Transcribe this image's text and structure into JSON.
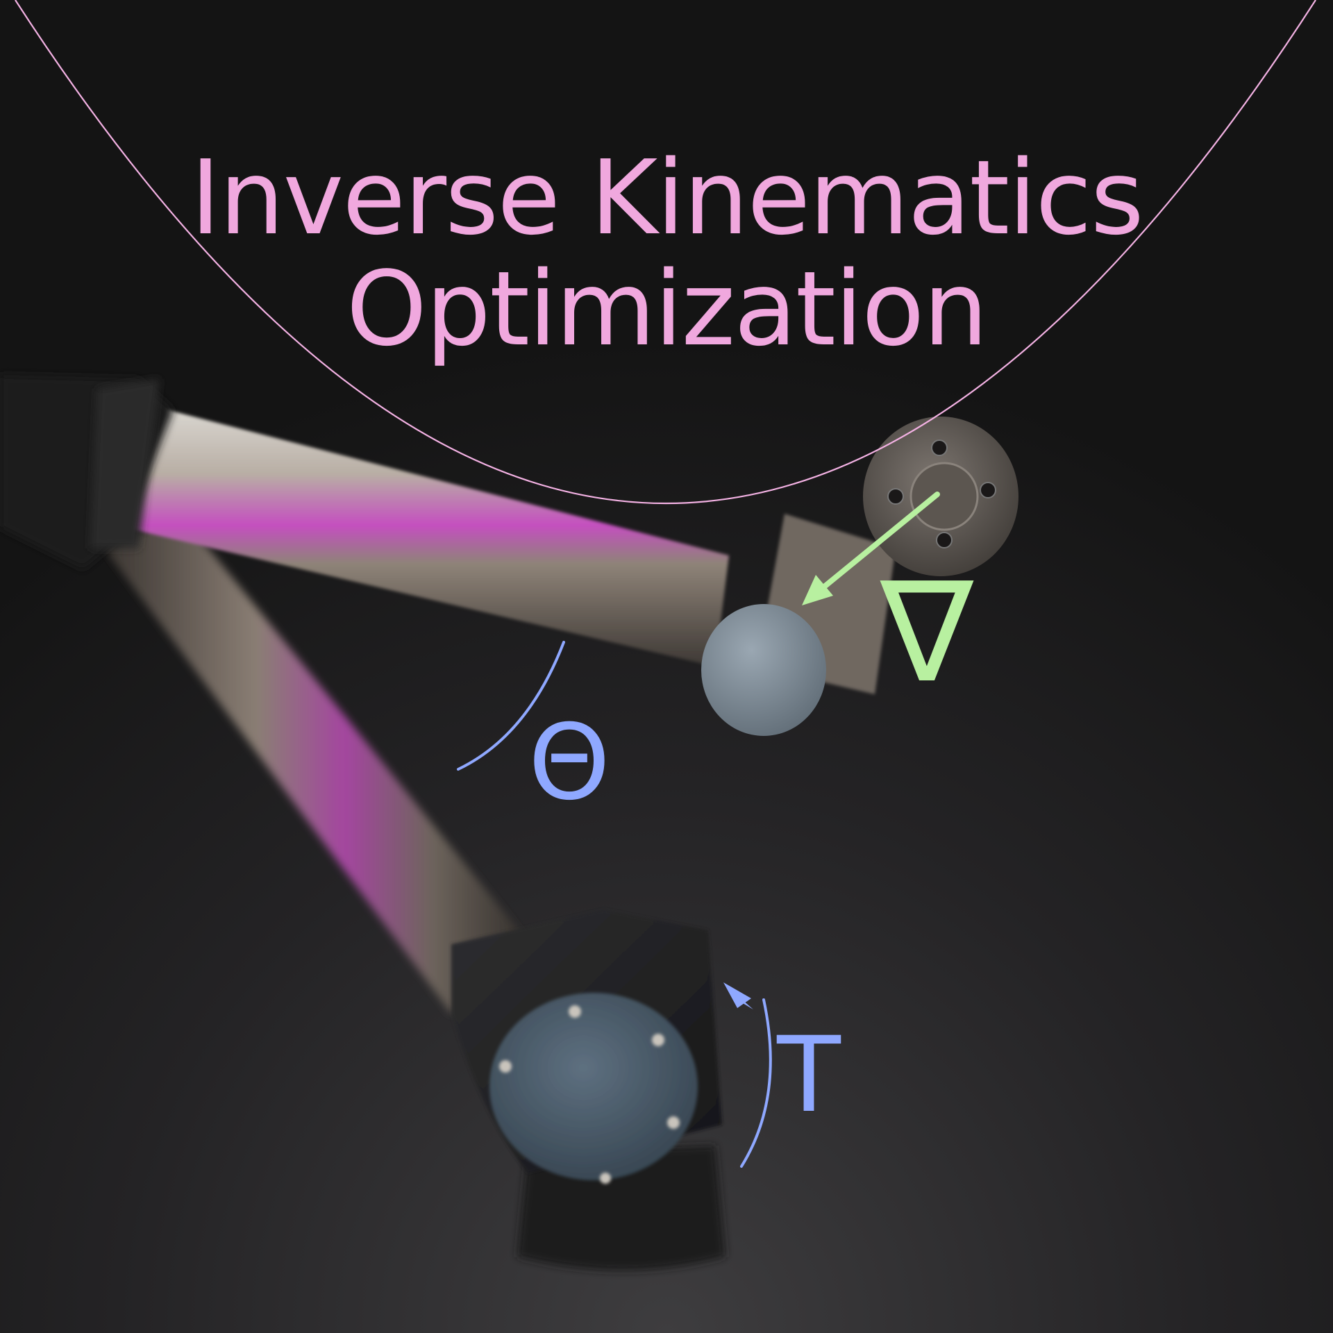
{
  "title": {
    "line1": "Inverse Kinematics",
    "line2": "Optimization"
  },
  "symbols": {
    "joint_angle": "Θ",
    "gradient": "∇",
    "transform": "T"
  },
  "colors": {
    "background": "#141414",
    "title": "#f0a8de",
    "loss_curve": "#f4b2e4",
    "gradient": "#b8f0a0",
    "joint_annotation": "#8fa8ff",
    "arm_metal": "#a89e94",
    "joint_cap": "#4a5a6a"
  },
  "icons": {
    "gradient_arrow": "arrow-down-left-icon",
    "rotation_arrow": "curved-arrow-up-icon"
  }
}
